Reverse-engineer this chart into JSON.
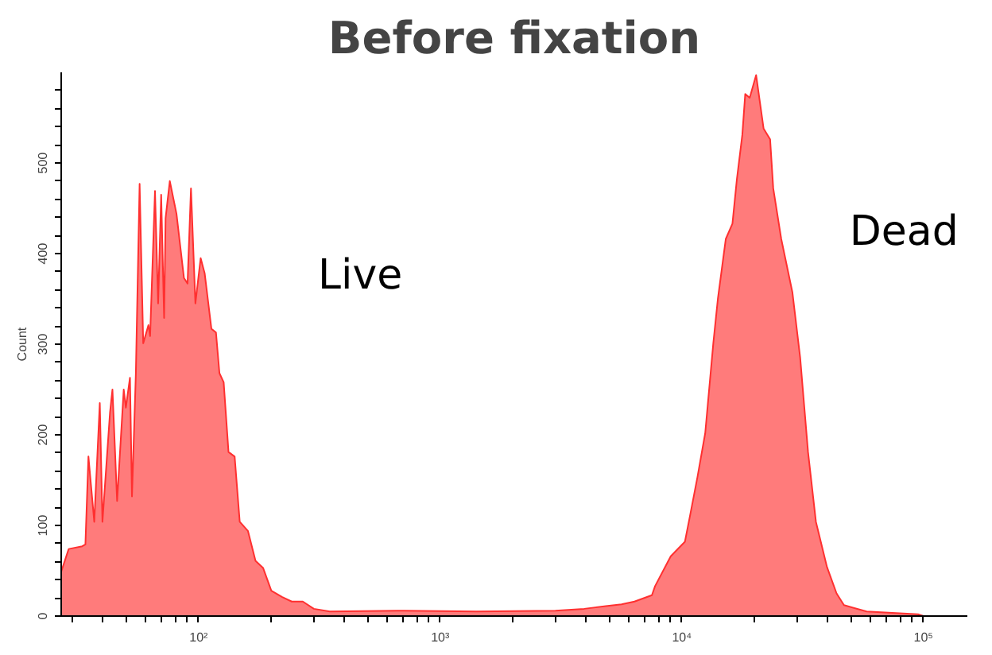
{
  "chart_data": {
    "type": "area",
    "title": "Before fixation",
    "ylabel": "Count",
    "x": [
      27,
      29,
      33,
      34,
      35,
      37,
      39,
      40,
      43,
      44,
      46,
      49,
      50,
      52,
      53,
      55,
      57,
      59,
      62,
      63,
      66,
      68,
      70,
      72,
      73,
      76,
      81,
      87,
      90,
      93,
      97,
      102,
      106,
      113,
      118,
      122,
      127,
      133,
      141,
      148,
      160,
      172,
      185,
      200,
      222,
      243,
      270,
      300,
      349,
      665,
      1410,
      3000,
      3940,
      5630,
      6370,
      7520,
      7750,
      9000,
      10300,
      10800,
      11600,
      12500,
      13500,
      14100,
      15200,
      16200,
      16900,
      17800,
      18300,
      19100,
      20300,
      21800,
      23200,
      23900,
      25800,
      28700,
      30900,
      33300,
      35900,
      39900,
      43700,
      46900,
      58200,
      95000,
      100000
    ],
    "series": [
      {
        "color": "#ff7b7b",
        "values": [
          49,
          74,
          77,
          79,
          176,
          104,
          235,
          104,
          225,
          250,
          127,
          250,
          230,
          263,
          132,
          268,
          477,
          301,
          321,
          309,
          469,
          345,
          465,
          329,
          439,
          480,
          444,
          373,
          367,
          472,
          345,
          395,
          378,
          317,
          313,
          268,
          258,
          181,
          176,
          104,
          94,
          61,
          53,
          28,
          21,
          16,
          16,
          8,
          5,
          6,
          5,
          6,
          8,
          13,
          16,
          23,
          33,
          66,
          82,
          110,
          153,
          202,
          301,
          350,
          416,
          433,
          482,
          531,
          576,
          572,
          597,
          538,
          526,
          472,
          416,
          357,
          285,
          181,
          104,
          54,
          25,
          12,
          5,
          2,
          0
        ]
      }
    ],
    "log": "x",
    "xlim": [
      27,
      152000
    ],
    "ylim": [
      0,
      600
    ],
    "xticks": [
      {
        "value": 30,
        "label": null
      },
      {
        "value": 40,
        "label": null
      },
      {
        "value": 50,
        "label": null
      },
      {
        "value": 60,
        "label": null
      },
      {
        "value": 70,
        "label": null
      },
      {
        "value": 80,
        "label": null
      },
      {
        "value": 90,
        "label": null
      },
      {
        "value": 100,
        "label": "10²"
      },
      {
        "value": 200,
        "label": null
      },
      {
        "value": 300,
        "label": null
      },
      {
        "value": 400,
        "label": null
      },
      {
        "value": 500,
        "label": null
      },
      {
        "value": 600,
        "label": null
      },
      {
        "value": 700,
        "label": null
      },
      {
        "value": 800,
        "label": null
      },
      {
        "value": 900,
        "label": null
      },
      {
        "value": 1000,
        "label": "10³"
      },
      {
        "value": 2000,
        "label": null
      },
      {
        "value": 3000,
        "label": null
      },
      {
        "value": 4000,
        "label": null
      },
      {
        "value": 5000,
        "label": null
      },
      {
        "value": 6000,
        "label": null
      },
      {
        "value": 7000,
        "label": null
      },
      {
        "value": 8000,
        "label": null
      },
      {
        "value": 9000,
        "label": null
      },
      {
        "value": 10000,
        "label": "10⁴"
      },
      {
        "value": 20000,
        "label": null
      },
      {
        "value": 30000,
        "label": null
      },
      {
        "value": 40000,
        "label": null
      },
      {
        "value": 50000,
        "label": null
      },
      {
        "value": 60000,
        "label": null
      },
      {
        "value": 70000,
        "label": null
      },
      {
        "value": 80000,
        "label": null
      },
      {
        "value": 90000,
        "label": null
      },
      {
        "value": 100000,
        "label": "10⁵"
      }
    ],
    "yticks": [
      0,
      {
        "value": 20,
        "label": null
      },
      {
        "value": 40,
        "label": null
      },
      {
        "value": 60,
        "label": null
      },
      {
        "value": 80,
        "label": null
      },
      100,
      {
        "value": 120,
        "label": null
      },
      {
        "value": 140,
        "label": null
      },
      {
        "value": 160,
        "label": null
      },
      {
        "value": 180,
        "label": null
      },
      200,
      {
        "value": 220,
        "label": null
      },
      {
        "value": 240,
        "label": null
      },
      {
        "value": 260,
        "label": null
      },
      {
        "value": 280,
        "label": null
      },
      300,
      {
        "value": 320,
        "label": null
      },
      {
        "value": 340,
        "label": null
      },
      {
        "value": 360,
        "label": null
      },
      {
        "value": 380,
        "label": null
      },
      400,
      {
        "value": 420,
        "label": null
      },
      {
        "value": 440,
        "label": null
      },
      {
        "value": 460,
        "label": null
      },
      {
        "value": 480,
        "label": null
      },
      500,
      {
        "value": 520,
        "label": null
      },
      {
        "value": 540,
        "label": null
      },
      {
        "value": 560,
        "label": null
      },
      {
        "value": 580,
        "label": null
      }
    ],
    "grid": false,
    "annotations": [
      "Live",
      "Dead"
    ]
  }
}
